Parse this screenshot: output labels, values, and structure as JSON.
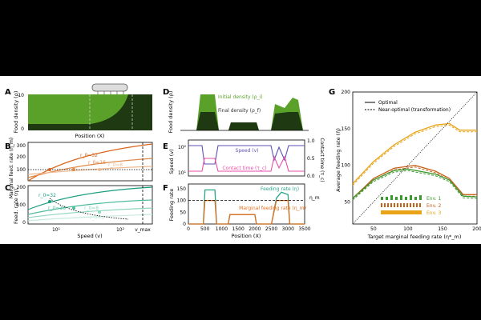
{
  "figure": {
    "panels": {
      "A": {
        "letter": "A",
        "ylabel": "Food density (ρ)",
        "xlabel": "Position (X)",
        "yticks": [
          "0",
          "10"
        ]
      },
      "B": {
        "letter": "B",
        "ylabel": "Marginal feed. rate (η_m)",
        "yticks": [
          "100",
          "200",
          "300"
        ],
        "curve_labels": [
          "r_0=32",
          "r_0=16",
          "r_0=8"
        ]
      },
      "C": {
        "letter": "C",
        "ylabel": "Feed. rate (η)",
        "xlabel": "Speed (v)",
        "yticks": [
          "0",
          "100",
          "200"
        ],
        "xticks": [
          "10¹",
          "10²",
          "v_max"
        ],
        "curve_labels": [
          "r_0=32",
          "r_0=16",
          "r_0=8",
          "r_0=4"
        ]
      },
      "D": {
        "letter": "D",
        "ylabel": "Food density (ρ)",
        "label_initial": "Initial density (ρ_i)",
        "label_final": "Final density (ρ_f)"
      },
      "E": {
        "letter": "E",
        "ylabel_left": "Speed (v)",
        "ylabel_right": "Contact time (τ_c)",
        "yticks_left": [
          "10¹",
          "10²"
        ],
        "yticks_right": [
          "0.0",
          "0.5",
          "1.0"
        ],
        "label_speed": "Speed (v)",
        "label_contact": "Contact time (τ_c)"
      },
      "F": {
        "letter": "F",
        "ylabel": "Feeding rate",
        "xlabel": "Position (X)",
        "yticks": [
          "0",
          "50",
          "100",
          "150"
        ],
        "xticks": [
          "0",
          "500",
          "1000",
          "1500",
          "2000",
          "2500",
          "3000",
          "3500"
        ],
        "label_feeding": "Feeding rate (η)",
        "label_marginal": "Marginal feeding rate (η_m)",
        "label_eta": "η_m"
      },
      "G": {
        "letter": "G",
        "ylabel": "Average feeding rate (η̄)",
        "xlabel": "Target marginal feeding rate (η*_m)",
        "yticks": [
          "50",
          "100",
          "150",
          "200"
        ],
        "xticks": [
          "50",
          "100",
          "150",
          "200"
        ],
        "legend": [
          "Optimal",
          "Near-optimal (transformation)"
        ],
        "env_labels": [
          "Env. 1",
          "Env. 2",
          "Env. 3"
        ]
      }
    }
  },
  "chart_data": [
    {
      "panel": "G",
      "type": "line",
      "xlim": [
        20,
        200
      ],
      "ylim": [
        20,
        200
      ],
      "series": [
        {
          "name": "Env. 3 optimal",
          "color": "#e8a317",
          "x": [
            20,
            50,
            80,
            110,
            140,
            160,
            175,
            200
          ],
          "y": [
            75,
            105,
            128,
            145,
            155,
            157,
            148,
            148
          ]
        },
        {
          "name": "Env. 2 optimal",
          "color": "#c8601a",
          "x": [
            20,
            50,
            80,
            110,
            140,
            160,
            180,
            200
          ],
          "y": [
            55,
            82,
            96,
            100,
            92,
            82,
            60,
            60
          ]
        },
        {
          "name": "Env. 1 optimal",
          "color": "#3b9a2e",
          "x": [
            20,
            50,
            80,
            100,
            140,
            160,
            180,
            200
          ],
          "y": [
            55,
            80,
            93,
            95,
            88,
            80,
            58,
            57
          ]
        }
      ]
    },
    {
      "panel": "F",
      "type": "line",
      "xlim": [
        0,
        3500
      ],
      "ylim": [
        0,
        170
      ],
      "series": [
        {
          "name": "Feeding rate (η)",
          "color": "#2aa58a",
          "x": [
            0,
            450,
            500,
            800,
            850,
            1200,
            1250,
            2000,
            2050,
            2500,
            2650,
            2800,
            3000,
            3050,
            3500
          ],
          "y": [
            0,
            0,
            145,
            145,
            0,
            0,
            40,
            40,
            0,
            0,
            110,
            135,
            125,
            0,
            0
          ]
        },
        {
          "name": "Marginal feeding rate (η_m)",
          "color": "#e0701e",
          "x": [
            0,
            450,
            500,
            800,
            850,
            1200,
            1250,
            2000,
            2050,
            2500,
            2650,
            2800,
            3000,
            3050,
            3500
          ],
          "y": [
            0,
            0,
            100,
            100,
            0,
            0,
            40,
            40,
            0,
            0,
            100,
            100,
            100,
            0,
            0
          ]
        }
      ]
    }
  ]
}
